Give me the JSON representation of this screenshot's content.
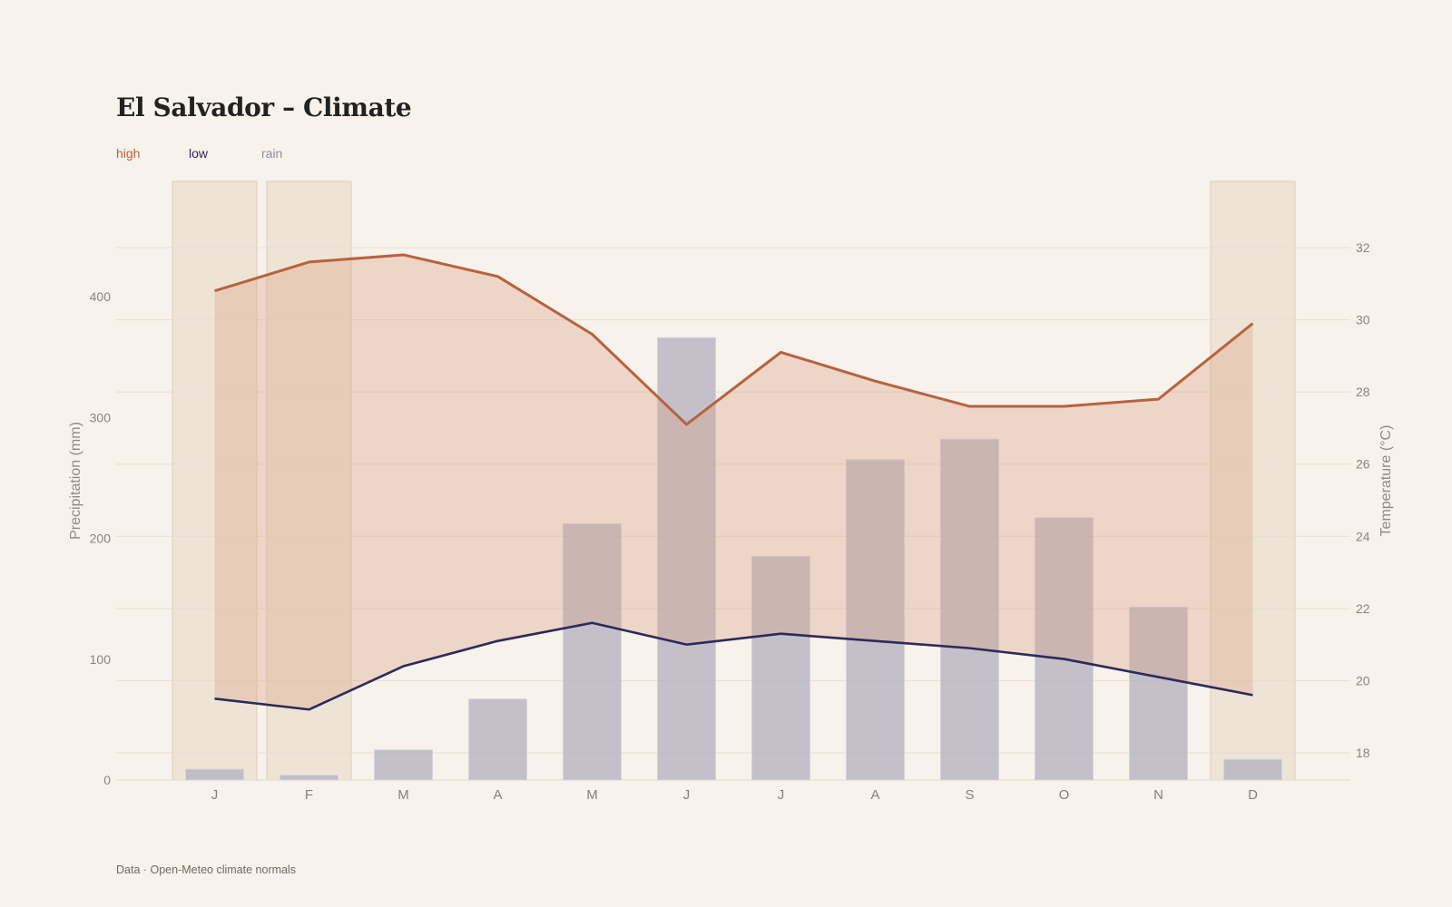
{
  "title": "El Salvador – Climate",
  "legend": {
    "high": "high",
    "low": "low",
    "rain": "rain"
  },
  "source": "Data · Open-Meteo climate normals",
  "colors": {
    "high": "#b8623e",
    "low": "#2c2a5a",
    "rain": "#b5b3c0",
    "dry_season": "#e5d9c5",
    "background": "#f7f2eb"
  },
  "chart_data": {
    "type": "bar+line",
    "categories": [
      "J",
      "F",
      "M",
      "A",
      "M",
      "J",
      "J",
      "A",
      "S",
      "O",
      "N",
      "D"
    ],
    "highlighted_months": [
      0,
      1,
      11
    ],
    "series": [
      {
        "name": "rain",
        "axis": "left",
        "values": [
          9,
          4,
          25,
          67,
          212,
          366,
          185,
          265,
          282,
          217,
          143,
          17
        ]
      },
      {
        "name": "high",
        "axis": "right",
        "values": [
          30.8,
          31.6,
          31.8,
          31.2,
          29.6,
          27.1,
          29.1,
          28.3,
          27.6,
          27.6,
          27.8,
          29.9
        ]
      },
      {
        "name": "low",
        "axis": "right",
        "values": [
          19.5,
          19.2,
          20.4,
          21.1,
          21.6,
          21.0,
          21.3,
          21.1,
          20.9,
          20.6,
          20.1,
          19.6
        ]
      }
    ],
    "y_left": {
      "label": "Precipitation (mm)",
      "ticks": [
        0,
        100,
        200,
        300,
        400
      ],
      "range": [
        0,
        490
      ]
    },
    "y_right": {
      "label": "Temperature (°C)",
      "ticks": [
        18,
        20,
        22,
        24,
        26,
        28,
        30,
        32
      ],
      "range": [
        17.3,
        33.8
      ]
    },
    "grid": true
  }
}
